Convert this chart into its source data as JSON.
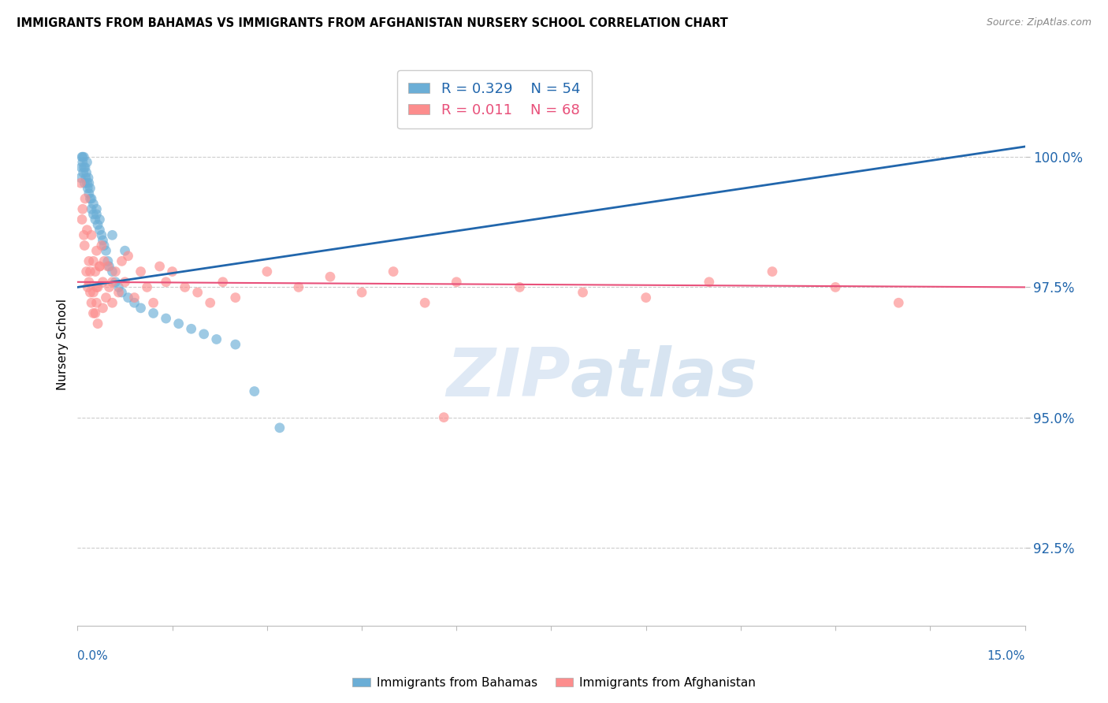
{
  "title": "IMMIGRANTS FROM BAHAMAS VS IMMIGRANTS FROM AFGHANISTAN NURSERY SCHOOL CORRELATION CHART",
  "source": "Source: ZipAtlas.com",
  "ylabel": "Nursery School",
  "y_ticks": [
    92.5,
    95.0,
    97.5,
    100.0
  ],
  "y_tick_labels": [
    "92.5%",
    "95.0%",
    "97.5%",
    "100.0%"
  ],
  "xlim": [
    0.0,
    15.0
  ],
  "ylim": [
    91.0,
    101.8
  ],
  "bahamas_R": 0.329,
  "bahamas_N": 54,
  "afghanistan_R": 0.011,
  "afghanistan_N": 68,
  "bahamas_color": "#6baed6",
  "afghanistan_color": "#fc8d8d",
  "bahamas_line_color": "#2166ac",
  "afghanistan_line_color": "#e8507a",
  "watermark_text": "ZIPatlas",
  "bahamas_x": [
    0.05,
    0.06,
    0.07,
    0.08,
    0.08,
    0.09,
    0.1,
    0.1,
    0.11,
    0.12,
    0.13,
    0.14,
    0.15,
    0.15,
    0.16,
    0.17,
    0.18,
    0.18,
    0.2,
    0.2,
    0.22,
    0.22,
    0.25,
    0.25,
    0.28,
    0.3,
    0.32,
    0.35,
    0.38,
    0.4,
    0.42,
    0.45,
    0.48,
    0.5,
    0.55,
    0.6,
    0.65,
    0.7,
    0.8,
    0.9,
    1.0,
    1.2,
    1.4,
    1.6,
    1.8,
    2.0,
    2.2,
    2.5,
    0.3,
    0.35,
    0.55,
    0.75,
    2.8,
    3.2
  ],
  "bahamas_y": [
    99.6,
    99.8,
    100.0,
    99.9,
    100.0,
    99.7,
    99.8,
    100.0,
    99.5,
    99.8,
    99.6,
    99.7,
    99.5,
    99.9,
    99.4,
    99.6,
    99.3,
    99.5,
    99.2,
    99.4,
    99.0,
    99.2,
    98.9,
    99.1,
    98.8,
    98.9,
    98.7,
    98.6,
    98.5,
    98.4,
    98.3,
    98.2,
    98.0,
    97.9,
    97.8,
    97.6,
    97.5,
    97.4,
    97.3,
    97.2,
    97.1,
    97.0,
    96.9,
    96.8,
    96.7,
    96.6,
    96.5,
    96.4,
    99.0,
    98.8,
    98.5,
    98.2,
    95.5,
    94.8
  ],
  "afghanistan_x": [
    0.05,
    0.07,
    0.08,
    0.1,
    0.11,
    0.12,
    0.14,
    0.15,
    0.16,
    0.18,
    0.18,
    0.2,
    0.22,
    0.22,
    0.25,
    0.25,
    0.28,
    0.3,
    0.3,
    0.32,
    0.35,
    0.38,
    0.4,
    0.4,
    0.42,
    0.45,
    0.48,
    0.5,
    0.55,
    0.6,
    0.65,
    0.7,
    0.75,
    0.8,
    0.9,
    1.0,
    1.1,
    1.2,
    1.3,
    1.4,
    1.5,
    1.7,
    1.9,
    2.1,
    2.3,
    2.5,
    3.0,
    3.5,
    4.0,
    4.5,
    5.0,
    5.5,
    6.0,
    7.0,
    8.0,
    9.0,
    10.0,
    11.0,
    12.0,
    13.0,
    0.2,
    0.25,
    0.28,
    0.3,
    0.32,
    0.35,
    0.55,
    5.8
  ],
  "afghanistan_y": [
    99.5,
    98.8,
    99.0,
    98.5,
    98.3,
    99.2,
    97.8,
    98.6,
    97.5,
    98.0,
    97.6,
    97.8,
    97.2,
    98.5,
    97.4,
    98.0,
    97.0,
    97.5,
    98.2,
    96.8,
    97.9,
    98.3,
    97.1,
    97.6,
    98.0,
    97.3,
    97.9,
    97.5,
    97.2,
    97.8,
    97.4,
    98.0,
    97.6,
    98.1,
    97.3,
    97.8,
    97.5,
    97.2,
    97.9,
    97.6,
    97.8,
    97.5,
    97.4,
    97.2,
    97.6,
    97.3,
    97.8,
    97.5,
    97.7,
    97.4,
    97.8,
    97.2,
    97.6,
    97.5,
    97.4,
    97.3,
    97.6,
    97.8,
    97.5,
    97.2,
    97.4,
    97.0,
    97.8,
    97.2,
    97.5,
    97.9,
    97.6,
    95.0
  ],
  "bahamas_trend_x": [
    0.0,
    15.0
  ],
  "bahamas_trend_y": [
    97.5,
    100.2
  ],
  "afghanistan_trend_x": [
    0.0,
    15.0
  ],
  "afghanistan_trend_y": [
    97.6,
    97.5
  ]
}
